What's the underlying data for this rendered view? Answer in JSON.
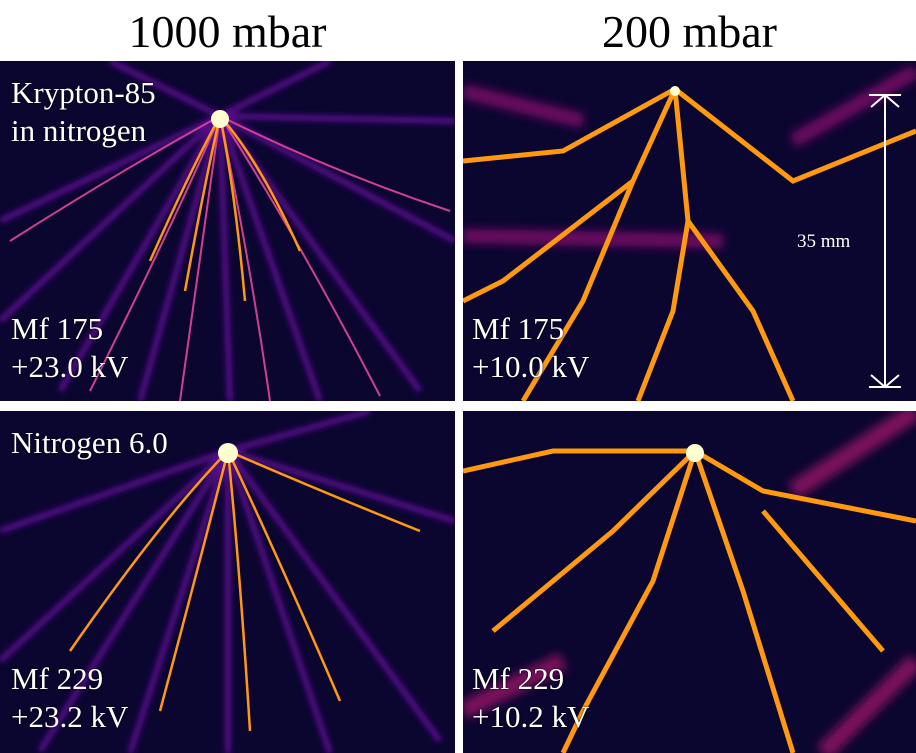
{
  "columns": [
    "1000 mbar",
    "200 mbar"
  ],
  "panels": [
    {
      "gas_line1": "Krypton-85",
      "gas_line2": "in nitrogen",
      "mf": "Mf 175",
      "voltage": "+23.0 kV"
    },
    {
      "mf": "Mf 175",
      "voltage": "+10.0 kV",
      "scale": "35 mm"
    },
    {
      "gas_line1": "Nitrogen 6.0",
      "mf": "Mf 229",
      "voltage": "+23.2 kV"
    },
    {
      "mf": "Mf 229",
      "voltage": "+10.2 kV"
    }
  ],
  "colors": {
    "background": "#0a0630",
    "glow": "#6a10a0",
    "branch": "#ff9a10",
    "core": "#ffffd0",
    "separator": "#ffffff"
  },
  "image_content": "false-color images of streamer discharges branching from a needle electrode"
}
